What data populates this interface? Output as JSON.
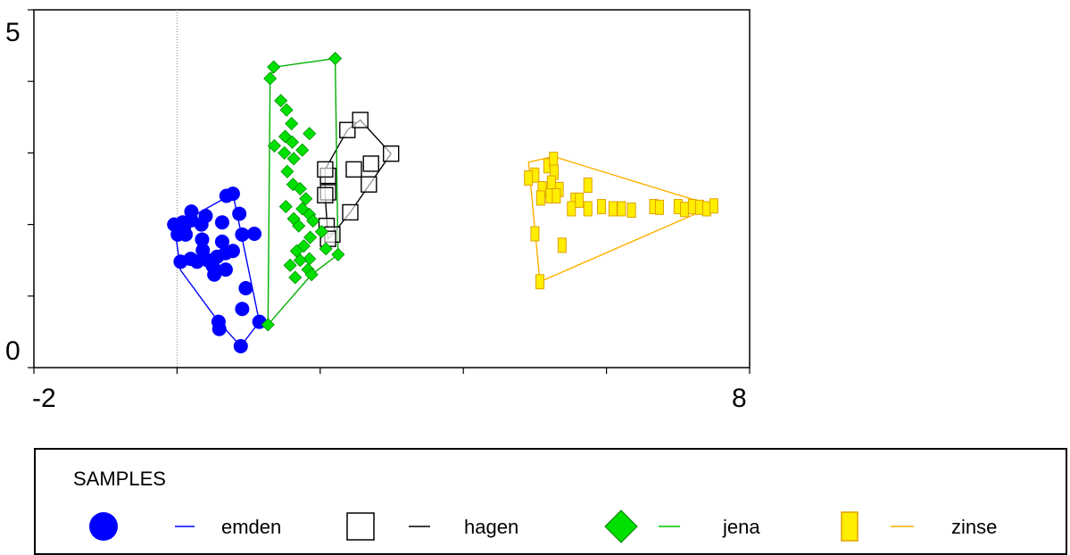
{
  "chart_data": {
    "type": "scatter",
    "title": "",
    "xlabel": "",
    "ylabel": "",
    "xlim": [
      -2,
      8
    ],
    "ylim": [
      0,
      5
    ],
    "x_tick_labels": [
      "-2",
      "8"
    ],
    "y_tick_labels": [
      "0",
      "5"
    ],
    "x_minor_ticks": [
      -2,
      0,
      2,
      4,
      6,
      8
    ],
    "y_minor_ticks": [
      0,
      1,
      2,
      3,
      4,
      5
    ],
    "reference_line_x": 0,
    "grid": false,
    "legend_position": "bottom",
    "legend_title": "SAMPLES",
    "series": [
      {
        "name": "emden",
        "marker": "circle",
        "color": "#0000ff",
        "points": [
          [
            -0.04,
            2.0
          ],
          [
            0.08,
            2.03
          ],
          [
            0.1,
            1.97
          ],
          [
            0.04,
            1.91
          ],
          [
            0.01,
            1.86
          ],
          [
            0.12,
            1.86
          ],
          [
            0.2,
            2.06
          ],
          [
            0.2,
            2.18
          ],
          [
            0.34,
            2.0
          ],
          [
            0.4,
            2.12
          ],
          [
            0.63,
            2.03
          ],
          [
            0.69,
            2.4
          ],
          [
            0.78,
            2.43
          ],
          [
            0.87,
            2.15
          ],
          [
            0.91,
            1.86
          ],
          [
            0.63,
            1.76
          ],
          [
            0.56,
            1.55
          ],
          [
            0.35,
            1.79
          ],
          [
            0.19,
            1.52
          ],
          [
            0.28,
            1.48
          ],
          [
            0.43,
            1.5
          ],
          [
            0.68,
            1.6
          ],
          [
            0.78,
            1.63
          ],
          [
            0.68,
            1.37
          ],
          [
            0.52,
            1.3
          ],
          [
            0.5,
            1.42
          ],
          [
            0.36,
            1.64
          ],
          [
            0.05,
            1.48
          ],
          [
            0.96,
            1.11
          ],
          [
            0.91,
            0.82
          ],
          [
            0.58,
            0.64
          ],
          [
            0.59,
            0.54
          ],
          [
            0.89,
            0.3
          ],
          [
            1.15,
            0.64
          ],
          [
            1.08,
            1.87
          ]
        ],
        "hull": [
          [
            -0.04,
            2.0
          ],
          [
            0.01,
            2.0
          ],
          [
            0.78,
            2.43
          ],
          [
            1.15,
            0.64
          ],
          [
            0.89,
            0.3
          ],
          [
            0.58,
            0.64
          ],
          [
            0.05,
            1.36
          ]
        ]
      },
      {
        "name": "hagen",
        "marker": "square",
        "color": "#000000",
        "points": [
          [
            2.11,
            2.68
          ],
          [
            2.07,
            2.77
          ],
          [
            2.38,
            3.32
          ],
          [
            2.56,
            3.46
          ],
          [
            2.99,
            2.99
          ],
          [
            2.71,
            2.85
          ],
          [
            2.47,
            2.77
          ],
          [
            2.68,
            2.56
          ],
          [
            2.11,
            2.45
          ],
          [
            2.07,
            2.41
          ],
          [
            2.42,
            2.17
          ],
          [
            2.09,
            1.98
          ],
          [
            2.17,
            1.86
          ],
          [
            2.11,
            1.8
          ]
        ],
        "hull": [
          [
            2.07,
            2.77
          ],
          [
            2.38,
            3.32
          ],
          [
            2.56,
            3.46
          ],
          [
            2.99,
            2.99
          ],
          [
            2.42,
            2.17
          ],
          [
            2.17,
            1.86
          ],
          [
            2.11,
            1.8
          ],
          [
            2.07,
            2.41
          ]
        ]
      },
      {
        "name": "jena",
        "marker": "diamond",
        "color": "#00e000",
        "points": [
          [
            1.3,
            4.04
          ],
          [
            1.35,
            4.2
          ],
          [
            2.21,
            4.32
          ],
          [
            1.45,
            3.73
          ],
          [
            1.53,
            3.6
          ],
          [
            1.6,
            3.41
          ],
          [
            1.85,
            3.27
          ],
          [
            1.51,
            3.23
          ],
          [
            1.61,
            3.15
          ],
          [
            1.36,
            3.1
          ],
          [
            1.75,
            3.04
          ],
          [
            1.5,
            3.0
          ],
          [
            1.63,
            2.92
          ],
          [
            1.54,
            2.74
          ],
          [
            1.62,
            2.56
          ],
          [
            1.72,
            2.5
          ],
          [
            1.8,
            2.36
          ],
          [
            1.52,
            2.25
          ],
          [
            1.75,
            2.22
          ],
          [
            1.85,
            2.14
          ],
          [
            1.63,
            2.08
          ],
          [
            1.9,
            2.05
          ],
          [
            1.7,
            1.98
          ],
          [
            2.02,
            1.9
          ],
          [
            1.86,
            1.82
          ],
          [
            1.77,
            1.7
          ],
          [
            1.67,
            1.63
          ],
          [
            2.08,
            1.66
          ],
          [
            1.85,
            1.52
          ],
          [
            2.25,
            1.58
          ],
          [
            1.72,
            1.5
          ],
          [
            1.83,
            1.37
          ],
          [
            1.88,
            1.3
          ],
          [
            1.65,
            1.26
          ],
          [
            1.58,
            1.43
          ],
          [
            1.27,
            0.6
          ]
        ],
        "hull": [
          [
            1.3,
            4.04
          ],
          [
            1.35,
            4.2
          ],
          [
            2.21,
            4.32
          ],
          [
            2.25,
            1.58
          ],
          [
            1.88,
            1.3
          ],
          [
            1.27,
            0.6
          ]
        ]
      },
      {
        "name": "zinse",
        "marker": "rect",
        "color": "#ffee00",
        "points": [
          [
            5.18,
            2.82
          ],
          [
            5.26,
            2.91
          ],
          [
            5.27,
            2.73
          ],
          [
            5.0,
            2.69
          ],
          [
            4.91,
            2.65
          ],
          [
            5.18,
            2.49
          ],
          [
            5.34,
            2.49
          ],
          [
            5.1,
            2.5
          ],
          [
            5.23,
            2.58
          ],
          [
            5.74,
            2.55
          ],
          [
            5.08,
            2.37
          ],
          [
            5.21,
            2.4
          ],
          [
            5.3,
            2.4
          ],
          [
            5.56,
            2.34
          ],
          [
            5.62,
            2.34
          ],
          [
            5.51,
            2.22
          ],
          [
            5.74,
            2.22
          ],
          [
            5.93,
            2.25
          ],
          [
            6.09,
            2.22
          ],
          [
            6.21,
            2.22
          ],
          [
            6.35,
            2.2
          ],
          [
            6.66,
            2.25
          ],
          [
            6.74,
            2.24
          ],
          [
            7.0,
            2.25
          ],
          [
            7.09,
            2.21
          ],
          [
            7.2,
            2.25
          ],
          [
            7.3,
            2.24
          ],
          [
            7.4,
            2.22
          ],
          [
            7.5,
            2.26
          ],
          [
            5.0,
            1.87
          ],
          [
            5.38,
            1.71
          ],
          [
            5.07,
            1.2
          ]
        ],
        "hull": [
          [
            4.91,
            2.87
          ],
          [
            5.26,
            2.95
          ],
          [
            7.5,
            2.26
          ],
          [
            5.07,
            1.2
          ]
        ]
      }
    ]
  }
}
